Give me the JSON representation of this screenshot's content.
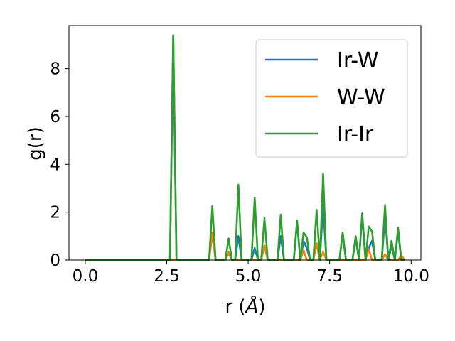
{
  "chart_data": {
    "type": "line",
    "xlabel": "r (",
    "xlabel_unit": "Å",
    "xlabel_close": ")",
    "ylabel": "g(r)",
    "xlim": [
      -0.5,
      10.3
    ],
    "ylim": [
      0,
      9.8
    ],
    "xticks": [
      0.0,
      2.5,
      5.0,
      7.5,
      10.0
    ],
    "xtick_labels": [
      "0.0",
      "2.5",
      "5.0",
      "7.5",
      "10.0"
    ],
    "yticks": [
      0,
      2,
      4,
      6,
      8
    ],
    "ytick_labels": [
      "0",
      "2",
      "4",
      "6",
      "8"
    ],
    "grid": false,
    "legend_position": "top-right",
    "series": [
      {
        "name": "Ir-W",
        "color": "#1f77b4",
        "x": [
          0.0,
          2.6,
          2.7,
          2.8,
          3.8,
          3.9,
          4.0,
          4.3,
          4.4,
          4.5,
          4.6,
          4.7,
          4.8,
          5.1,
          5.2,
          5.3,
          5.4,
          5.5,
          5.6,
          5.9,
          6.0,
          6.1,
          6.2,
          6.4,
          6.5,
          6.6,
          6.7,
          6.8,
          6.9,
          7.0,
          7.1,
          7.2,
          7.3,
          7.4,
          7.8,
          7.9,
          8.0,
          8.2,
          8.3,
          8.4,
          8.5,
          8.6,
          8.7,
          8.8,
          8.9,
          9.1,
          9.2,
          9.3,
          9.4,
          9.5,
          9.6,
          9.7,
          9.8
        ],
        "y": [
          0,
          0,
          9.35,
          0,
          0,
          1.1,
          0,
          0,
          0.3,
          0,
          0,
          1.0,
          0,
          0,
          0.5,
          0,
          0,
          0.6,
          0,
          0,
          1.0,
          0,
          0,
          0,
          1.6,
          0,
          0.8,
          0.5,
          0,
          0,
          0.7,
          0,
          2.3,
          0,
          0,
          1.1,
          0,
          0,
          0.9,
          0,
          1.9,
          0,
          0.5,
          0.8,
          0,
          0,
          1.9,
          0,
          0.6,
          0,
          1.2,
          0,
          0
        ]
      },
      {
        "name": "W-W",
        "color": "#ff7f0e",
        "x": [
          0.0,
          3.8,
          3.9,
          4.0,
          4.3,
          4.4,
          4.5,
          5.4,
          5.5,
          5.6,
          6.6,
          6.7,
          6.8,
          7.0,
          7.1,
          7.2,
          7.3,
          7.4,
          8.6,
          8.7,
          8.8,
          9.1,
          9.2,
          9.3,
          9.6,
          9.7,
          9.8
        ],
        "y": [
          0,
          0,
          1.15,
          0,
          0,
          0.35,
          0,
          0,
          0.6,
          0,
          0,
          0.4,
          0,
          0,
          0.7,
          0,
          0.35,
          0,
          0,
          0.45,
          0,
          0,
          0.25,
          0,
          0,
          0.2,
          0
        ]
      },
      {
        "name": "Ir-Ir",
        "color": "#2ca02c",
        "x": [
          0.0,
          2.6,
          2.7,
          2.8,
          3.8,
          3.9,
          4.0,
          4.3,
          4.4,
          4.5,
          4.6,
          4.7,
          4.8,
          5.1,
          5.2,
          5.3,
          5.4,
          5.5,
          5.6,
          5.9,
          6.0,
          6.1,
          6.2,
          6.4,
          6.5,
          6.6,
          6.7,
          6.8,
          6.9,
          7.0,
          7.1,
          7.2,
          7.3,
          7.4,
          7.8,
          7.9,
          8.0,
          8.2,
          8.3,
          8.4,
          8.5,
          8.6,
          8.7,
          8.8,
          8.9,
          9.1,
          9.2,
          9.3,
          9.4,
          9.5,
          9.6,
          9.7,
          9.8
        ],
        "y": [
          0,
          0,
          9.4,
          0,
          0,
          2.25,
          0,
          0,
          0.9,
          0,
          0,
          3.15,
          0,
          0,
          2.6,
          0,
          0,
          1.75,
          0,
          0,
          1.9,
          0,
          0,
          0,
          1.65,
          0,
          1.15,
          0.95,
          0,
          0,
          2.1,
          0,
          3.6,
          0,
          0,
          1.15,
          0,
          0,
          1.0,
          0,
          1.95,
          0,
          1.4,
          1.2,
          0,
          0,
          2.3,
          0,
          0.8,
          0,
          1.35,
          0,
          0
        ]
      }
    ]
  }
}
